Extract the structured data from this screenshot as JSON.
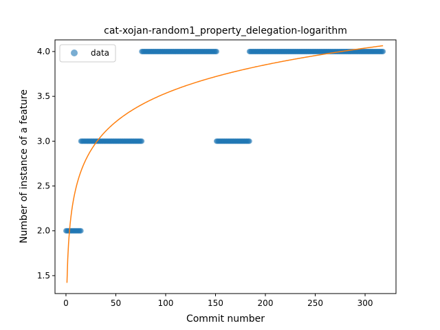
{
  "chart_data": {
    "type": "scatter",
    "title": "cat-xojan-random1_property_delegation-logarithm",
    "xlabel": "Commit number",
    "ylabel": "Number of instance of a feature",
    "xlim": [
      -11,
      331
    ],
    "ylim": [
      1.3,
      4.13
    ],
    "xticks": [
      0,
      50,
      100,
      150,
      200,
      250,
      300
    ],
    "xtick_labels": [
      "0",
      "50",
      "100",
      "150",
      "200",
      "250",
      "300"
    ],
    "yticks": [
      1.5,
      2.0,
      2.5,
      3.0,
      3.5,
      4.0
    ],
    "ytick_labels": [
      "1.5",
      "2.0",
      "2.5",
      "3.0",
      "3.5",
      "4.0"
    ],
    "grid": false,
    "legend": {
      "position": "upper-left",
      "entries": [
        "data"
      ]
    },
    "series": [
      {
        "name": "data",
        "kind": "scatter",
        "color": "#1f77b4",
        "alpha": 0.6,
        "segments": [
          {
            "x_start": 0,
            "x_end": 15,
            "y": 2.0
          },
          {
            "x_start": 15,
            "x_end": 76,
            "y": 3.0
          },
          {
            "x_start": 76,
            "x_end": 151,
            "y": 4.0
          },
          {
            "x_start": 151,
            "x_end": 184,
            "y": 3.0
          },
          {
            "x_start": 184,
            "x_end": 318,
            "y": 4.0
          }
        ]
      },
      {
        "kind": "line",
        "color": "#ff7f0e",
        "model": "logarithmic",
        "points": [
          [
            1,
            1.42
          ],
          [
            5,
            2.13
          ],
          [
            10,
            2.44
          ],
          [
            20,
            2.76
          ],
          [
            33,
            3.0
          ],
          [
            50,
            3.19
          ],
          [
            75,
            3.37
          ],
          [
            100,
            3.51
          ],
          [
            150,
            3.69
          ],
          [
            200,
            3.82
          ],
          [
            250,
            3.93
          ],
          [
            300,
            4.02
          ],
          [
            318,
            4.065
          ]
        ]
      }
    ]
  }
}
